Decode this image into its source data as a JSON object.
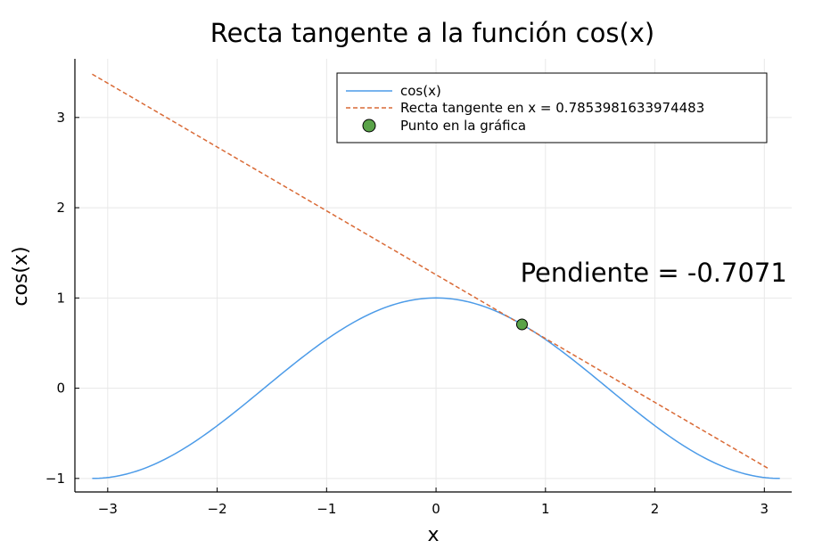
{
  "chart_data": {
    "type": "line",
    "title": "Recta tangente a la función cos(x)",
    "xlabel": "x",
    "ylabel": "cos(x)",
    "xlim": [
      -3.3,
      3.25
    ],
    "ylim": [
      -1.15,
      3.65
    ],
    "xticks": [
      -3,
      -2,
      -1,
      0,
      1,
      2,
      3
    ],
    "yticks": [
      -1,
      0,
      1,
      2,
      3
    ],
    "xtick_labels": [
      "−3",
      "−2",
      "−1",
      "0",
      "1",
      "2",
      "3"
    ],
    "ytick_labels": [
      "−1",
      "0",
      "1",
      "2",
      "3"
    ],
    "grid": true,
    "legend_position": "top-right",
    "series": [
      {
        "name": "cos(x)",
        "style": "solid",
        "color": "#4c9be8",
        "function": "cos(x)",
        "x_range": [
          -3.14159,
          3.14159
        ]
      },
      {
        "name": "Recta tangente en x = 0.7853981633974483",
        "style": "dashed",
        "color": "#d96a36",
        "x": [
          -3.14159,
          3.05
        ],
        "y": [
          3.48,
          -0.9
        ]
      },
      {
        "name": "Punto en la gráfica",
        "style": "marker",
        "color": "#5aa349",
        "x": [
          0.7853981633974483
        ],
        "y": [
          0.7071
        ]
      }
    ],
    "annotation": {
      "text": "Pendiente = -0.7071",
      "x": 0.77,
      "y": 1.18
    }
  }
}
